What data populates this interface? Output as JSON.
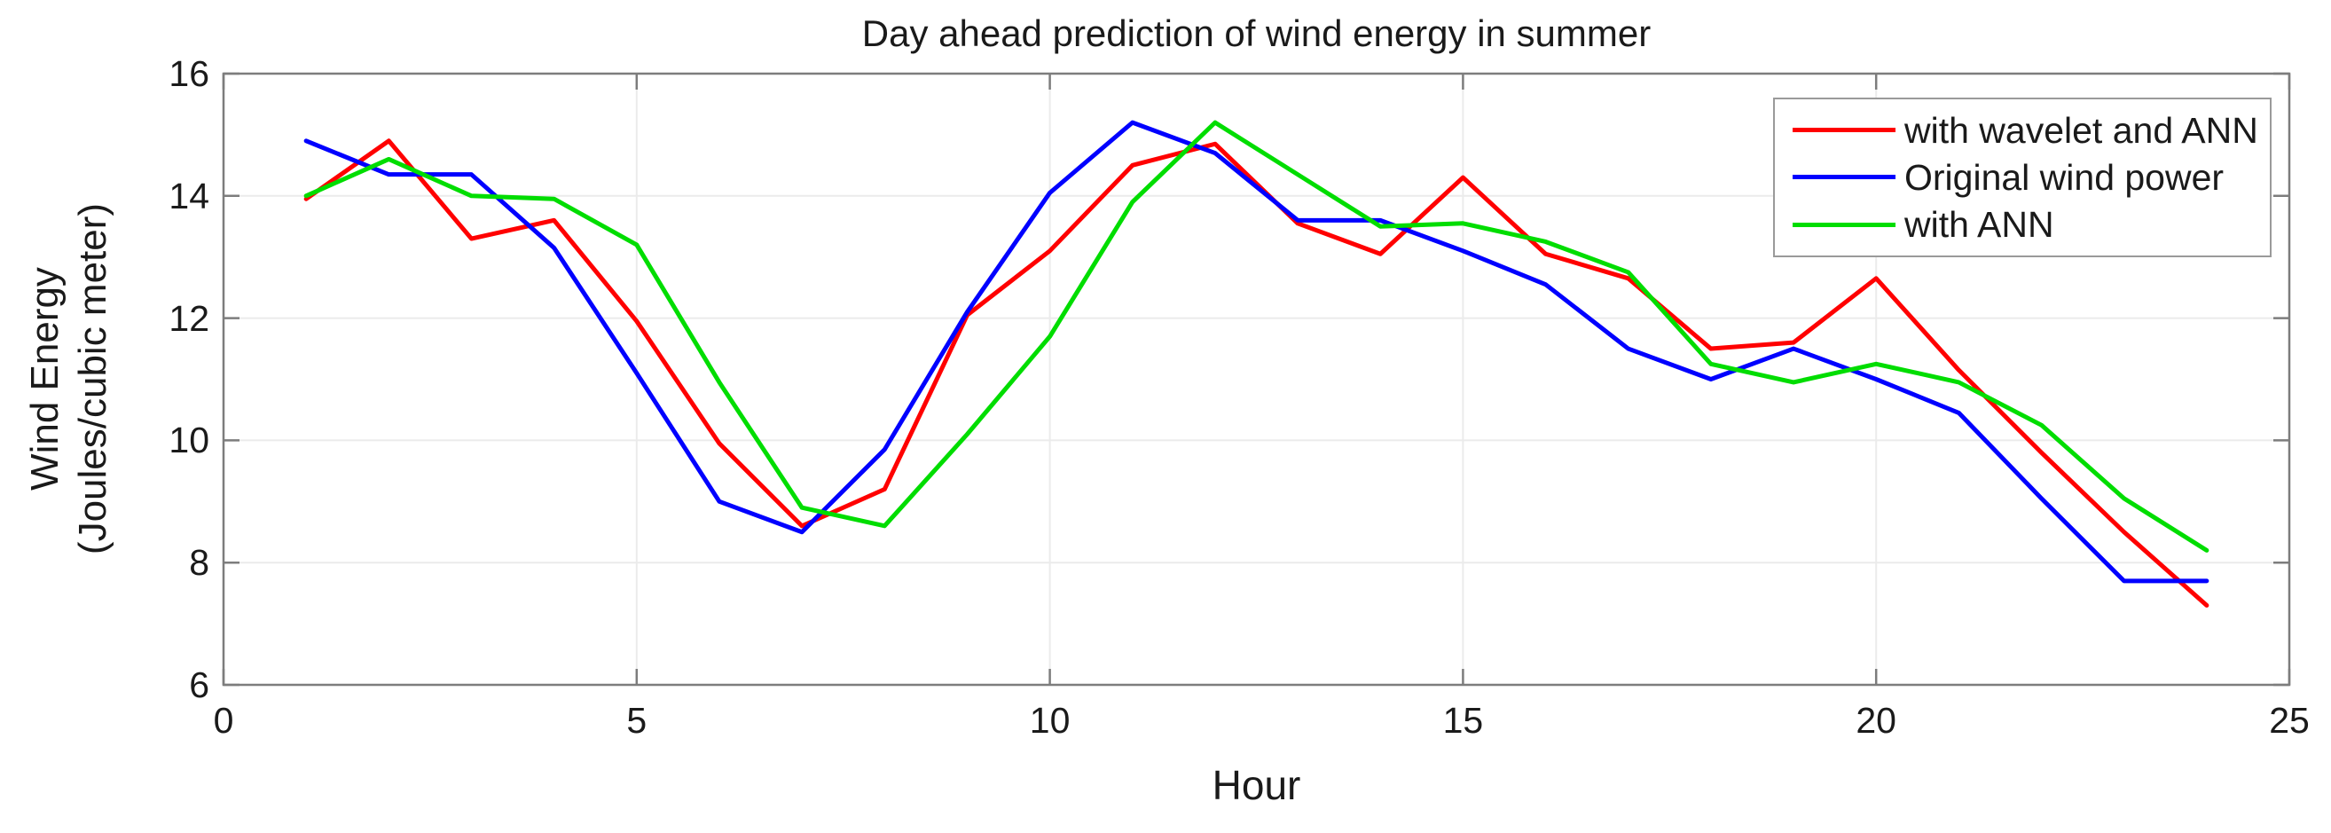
{
  "chart_data": {
    "type": "line",
    "title": "Day ahead prediction of wind energy in summer",
    "xlabel": "Hour",
    "ylabel": "Wind Energy (Joules/cubic meter)",
    "ylabel_lines": [
      "Wind Energy",
      "(Joules/cubic meter)"
    ],
    "xlim": [
      0,
      25
    ],
    "ylim": [
      6,
      16
    ],
    "x_ticks": [
      0,
      5,
      10,
      15,
      20,
      25
    ],
    "y_ticks": [
      6,
      8,
      10,
      12,
      14,
      16
    ],
    "grid": true,
    "legend_position": "top-right",
    "x": [
      1,
      2,
      3,
      4,
      5,
      6,
      7,
      8,
      9,
      10,
      11,
      12,
      13,
      14,
      15,
      16,
      17,
      18,
      19,
      20,
      21,
      22,
      23,
      24
    ],
    "series": [
      {
        "name": "with wavelet and ANN",
        "color": "#ff0000",
        "values": [
          13.95,
          14.9,
          13.3,
          13.6,
          11.95,
          9.95,
          8.6,
          9.2,
          12.05,
          13.1,
          14.5,
          14.85,
          13.55,
          13.05,
          14.3,
          13.05,
          12.65,
          11.5,
          11.6,
          12.65,
          11.15,
          9.8,
          8.5,
          7.3
        ]
      },
      {
        "name": "Original wind power",
        "color": "#0000ff",
        "values": [
          14.9,
          14.35,
          14.35,
          13.15,
          11.1,
          9.0,
          8.5,
          9.85,
          12.1,
          14.05,
          15.2,
          14.7,
          13.6,
          13.6,
          13.1,
          12.55,
          11.5,
          11.0,
          11.5,
          11.0,
          10.45,
          9.05,
          7.7,
          7.7
        ]
      },
      {
        "name": "with ANN",
        "color": "#00dd00",
        "values": [
          14.0,
          14.6,
          14.0,
          13.95,
          13.2,
          10.95,
          8.9,
          8.6,
          10.1,
          11.7,
          13.9,
          15.2,
          14.35,
          13.5,
          13.55,
          13.25,
          12.75,
          11.25,
          10.95,
          11.25,
          10.95,
          10.25,
          9.05,
          8.2
        ]
      }
    ]
  },
  "colors": {
    "grid": "#ebebeb",
    "axis": "#7d7d7d",
    "text": "#1a1a1a",
    "background": "#ffffff"
  }
}
